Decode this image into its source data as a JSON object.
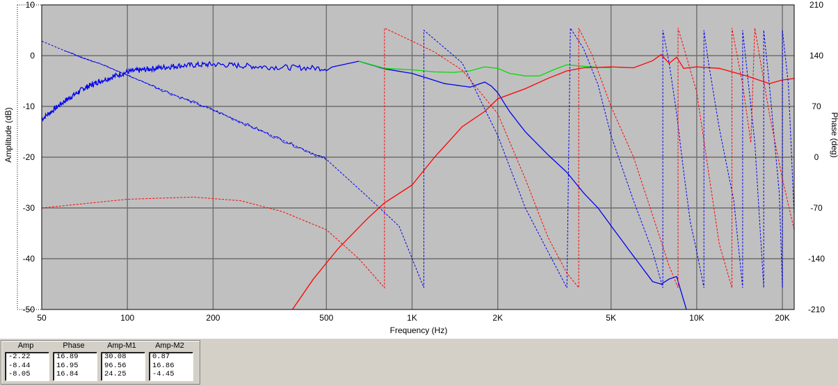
{
  "chart_data": {
    "type": "line",
    "xlabel": "Frequency (Hz)",
    "ylabel": "Amplitude (dB)",
    "y2label": "Phase (deg)",
    "x_scale": "log",
    "xlim": [
      50,
      22000
    ],
    "ylim": [
      -50,
      10
    ],
    "y2lim": [
      -210,
      210
    ],
    "x_ticks": [
      {
        "value": 50,
        "label": "50"
      },
      {
        "value": 100,
        "label": "100"
      },
      {
        "value": 200,
        "label": "200"
      },
      {
        "value": 500,
        "label": "500"
      },
      {
        "value": 1000,
        "label": "1K"
      },
      {
        "value": 2000,
        "label": "2K"
      },
      {
        "value": 5000,
        "label": "5K"
      },
      {
        "value": 10000,
        "label": "10K"
      },
      {
        "value": 20000,
        "label": "20K"
      }
    ],
    "y_ticks": [
      10,
      0,
      -10,
      -20,
      -30,
      -40,
      -50
    ],
    "y2_ticks": [
      210,
      140,
      70,
      0,
      -70,
      -140,
      -210
    ],
    "grid": true,
    "plot_background": "#c0c0c0",
    "series": [
      {
        "color": "#0000ee",
        "style": "solid",
        "axis": "amplitude",
        "noisy_below": 500,
        "x": [
          50,
          60,
          70,
          80,
          100,
          120,
          150,
          200,
          300,
          500,
          650,
          800,
          1000,
          1300,
          1600,
          1800,
          1900,
          2000,
          2200,
          2500,
          3000,
          3500,
          4000,
          4500,
          5000,
          6000,
          7000,
          7500,
          8000,
          8500,
          9200
        ],
        "y": [
          -12.5,
          -9,
          -6.5,
          -5,
          -3.2,
          -2.6,
          -2,
          -1.7,
          -2.2,
          -2.5,
          -1.1,
          -2.6,
          -3.5,
          -5.5,
          -6.2,
          -5.2,
          -6,
          -7.3,
          -11,
          -15,
          -19.5,
          -23,
          -27,
          -30,
          -33.5,
          -39.5,
          -44.5,
          -45,
          -44,
          -43.5,
          -50
        ]
      },
      {
        "color": "#00dd00",
        "style": "solid",
        "axis": "amplitude",
        "x": [
          650,
          800,
          1000,
          1200,
          1400,
          1600,
          1800,
          2000,
          2200,
          2500,
          2800,
          3200,
          3500,
          4000,
          4500,
          5000
        ],
        "y": [
          -1.1,
          -2.5,
          -2.8,
          -3.2,
          -3.3,
          -3.0,
          -2.2,
          -2.5,
          -3.5,
          -4.0,
          -4.0,
          -2.6,
          -1.8,
          -2.1,
          -2.3,
          -2.4
        ]
      },
      {
        "color": "#ff0000",
        "style": "solid",
        "axis": "amplitude",
        "x": [
          380,
          450,
          550,
          700,
          800,
          1000,
          1200,
          1500,
          1800,
          2000,
          2500,
          3000,
          3500,
          4000,
          5000,
          6000,
          7000,
          7500,
          8000,
          8500,
          9000,
          10000,
          12000,
          15000,
          18000,
          20000,
          22000
        ],
        "y": [
          -50,
          -44,
          -38,
          -32,
          -29,
          -25.5,
          -20,
          -14,
          -11,
          -8.5,
          -6.5,
          -4.5,
          -3.0,
          -2.4,
          -2.2,
          -2.4,
          -1.0,
          0.2,
          -1.5,
          -0.3,
          -2.5,
          -2.2,
          -2.5,
          -4.0,
          -5.5,
          -4.8,
          -4.5
        ]
      },
      {
        "color": "#0000ee",
        "style": "dashed",
        "axis": "phase",
        "x": [
          50,
          60,
          70,
          80,
          100,
          150,
          200,
          300,
          500,
          700,
          900,
          1100,
          1100,
          1500,
          2000,
          2500,
          3000,
          3500,
          3600,
          3600,
          4000,
          4500,
          5000,
          6000,
          7000,
          7600,
          7600,
          8000,
          8500,
          9000,
          9500,
          10000,
          10600,
          10600,
          11000,
          12000,
          13500,
          14500,
          14500,
          16000,
          17200,
          17200,
          18000,
          19500,
          20000,
          20000,
          21000,
          22000
        ],
        "y": [
          160,
          147,
          137,
          129,
          113,
          84,
          65,
          35,
          -3,
          -55,
          -95,
          -180,
          175,
          130,
          30,
          -70,
          -130,
          -180,
          178,
          178,
          150,
          100,
          30,
          -60,
          -130,
          -180,
          175,
          130,
          60,
          -20,
          -90,
          -130,
          -180,
          175,
          130,
          40,
          -60,
          -180,
          175,
          20,
          -180,
          175,
          100,
          -50,
          -180,
          175,
          100,
          -80
        ]
      },
      {
        "color": "#ff0000",
        "style": "dashed",
        "axis": "phase",
        "x": [
          50,
          100,
          170,
          250,
          350,
          500,
          650,
          800,
          800,
          1000,
          1200,
          1500,
          2000,
          2500,
          3000,
          3500,
          3850,
          3850,
          4300,
          5000,
          6000,
          7000,
          8000,
          8600,
          8600,
          9500,
          10000,
          11000,
          12000,
          13300,
          13300,
          14500,
          15500,
          16000,
          18000,
          20000,
          22000
        ],
        "y": [
          -70,
          -58,
          -55,
          -60,
          -75,
          -100,
          -140,
          -180,
          178,
          160,
          145,
          120,
          60,
          -30,
          -110,
          -160,
          -180,
          178,
          140,
          70,
          0,
          -80,
          -150,
          -180,
          178,
          120,
          90,
          -20,
          -120,
          -180,
          178,
          100,
          20,
          178,
          60,
          -30,
          -100
        ]
      }
    ]
  },
  "readout": {
    "columns": [
      {
        "header": "Amp",
        "values": [
          "-2.22",
          "-8.44",
          "-8.05"
        ]
      },
      {
        "header": "Phase",
        "values": [
          "16.89",
          "16.95",
          "16.84"
        ]
      },
      {
        "header": "Amp-M1",
        "values": [
          "30.08",
          "96.56",
          "24.25"
        ]
      },
      {
        "header": "Amp-M2",
        "values": [
          "0.87",
          "16.86",
          "-4.45"
        ]
      }
    ]
  }
}
